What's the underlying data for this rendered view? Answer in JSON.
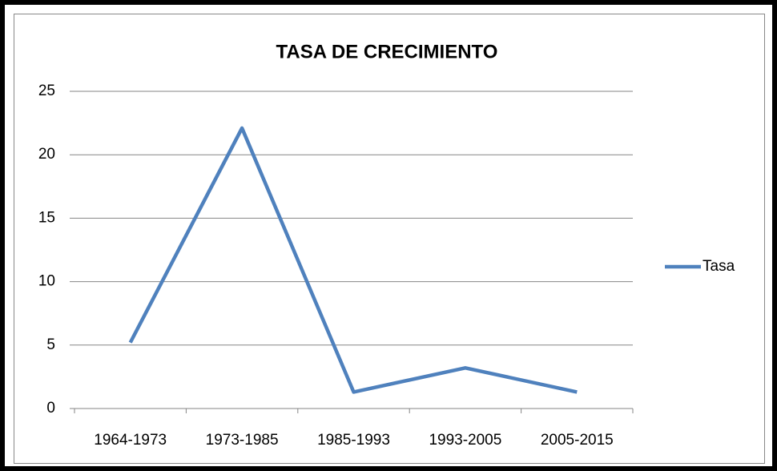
{
  "chart_data": {
    "type": "line",
    "title": "TASA DE CRECIMIENTO",
    "categories": [
      "1964-1973",
      "1973-1985",
      "1985-1993",
      "1993-2005",
      "2005-2015"
    ],
    "series": [
      {
        "name": "Tasa",
        "color": "#4f81bd",
        "values": [
          5.2,
          22.1,
          1.3,
          3.2,
          1.3
        ]
      }
    ],
    "ylim": [
      0,
      25
    ],
    "yticks": [
      0,
      5,
      10,
      15,
      20,
      25
    ],
    "grid": true,
    "legend": "right"
  }
}
